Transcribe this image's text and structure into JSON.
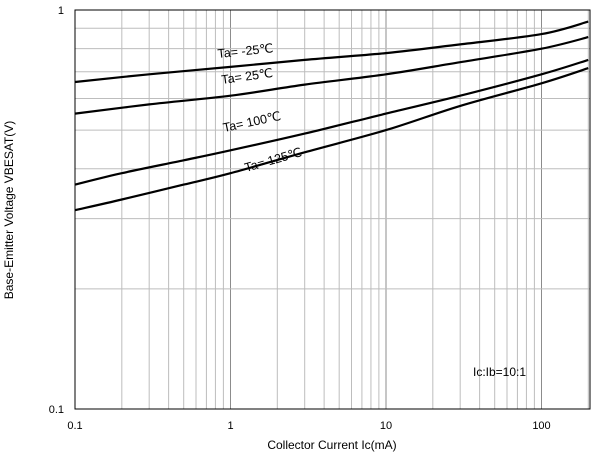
{
  "chart_data": {
    "type": "line",
    "title": "",
    "xlabel": "Collector Current Ic(mA)",
    "ylabel": "Base-Emitter Voltage VBESAT(V)",
    "xscale": "log",
    "yscale": "log",
    "xlim": [
      0.1,
      200
    ],
    "ylim": [
      0.1,
      1
    ],
    "grid": true,
    "x_ticks": [
      "0.1",
      "1",
      "10",
      "100"
    ],
    "y_ticks": [
      "0.1",
      "1"
    ],
    "annotation": "Ic:Ib=10:1",
    "series": [
      {
        "name": "Ta= -25℃",
        "x": [
          0.1,
          0.3,
          1,
          3,
          10,
          30,
          100,
          200
        ],
        "y": [
          0.66,
          0.69,
          0.72,
          0.75,
          0.78,
          0.82,
          0.87,
          0.935
        ]
      },
      {
        "name": "Ta= 25℃",
        "x": [
          0.1,
          0.3,
          1,
          3,
          10,
          30,
          100,
          200
        ],
        "y": [
          0.55,
          0.58,
          0.61,
          0.65,
          0.69,
          0.74,
          0.8,
          0.855
        ]
      },
      {
        "name": "Ta= 100℃",
        "x": [
          0.1,
          0.2,
          0.5,
          1,
          3,
          10,
          30,
          100,
          200
        ],
        "y": [
          0.365,
          0.39,
          0.42,
          0.445,
          0.49,
          0.55,
          0.61,
          0.69,
          0.75
        ]
      },
      {
        "name": "Ta= 125℃",
        "x": [
          0.1,
          0.2,
          0.5,
          1,
          3,
          10,
          30,
          100,
          200
        ],
        "y": [
          0.315,
          0.335,
          0.365,
          0.39,
          0.44,
          0.5,
          0.575,
          0.655,
          0.715
        ]
      }
    ]
  }
}
